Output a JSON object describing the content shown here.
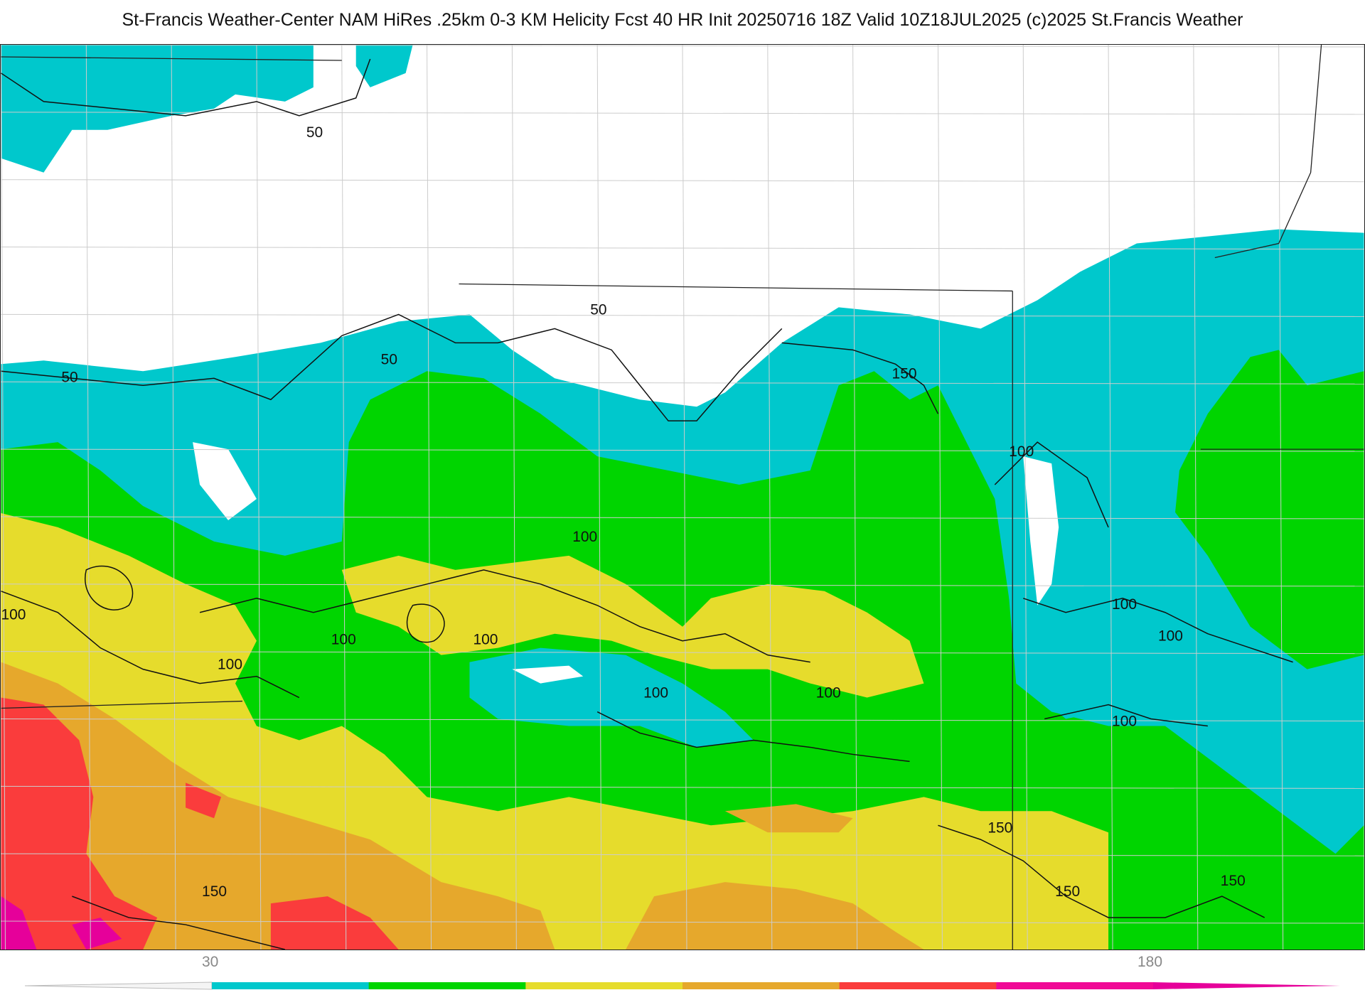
{
  "title": "St-Francis Weather-Center NAM HiRes .25km 0-3 KM Helicity Fcst 40 HR Init 20250716 18Z  Valid 10Z18JUL2025    (c)2025 St.Francis Weather",
  "contour_labels": [
    "50",
    "50",
    "50",
    "50",
    "150",
    "100",
    "100",
    "100",
    "100",
    "100",
    "100",
    "100",
    "100",
    "100",
    "100",
    "100",
    "150",
    "150",
    "150",
    "150"
  ],
  "legend": {
    "tick_labels": [
      "30",
      "180"
    ],
    "colors": [
      "#00c8cc",
      "#00d500",
      "#e6dc2c",
      "#e6a82c",
      "#fa3c3c",
      "#f00a96"
    ]
  },
  "palette": {
    "none": "#ffffff",
    "cyan": "#00c8cc",
    "green": "#00d500",
    "yellow": "#e6dc2c",
    "orange": "#e6a82c",
    "red": "#fa3c3c",
    "magenta": "#e6009a"
  }
}
